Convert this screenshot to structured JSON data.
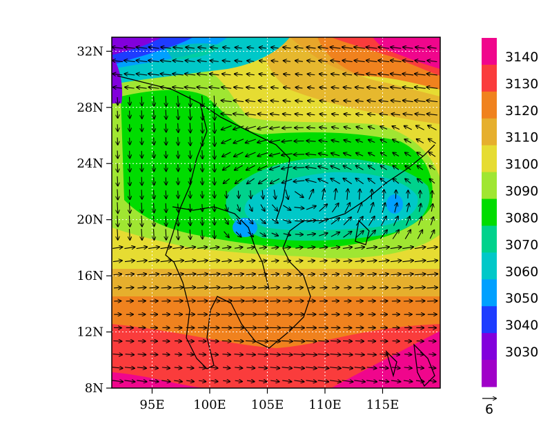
{
  "map": {
    "lat_ticks": [
      "32N",
      "28N",
      "24N",
      "20N",
      "16N",
      "12N",
      "8N"
    ],
    "lon_ticks": [
      "95E",
      "100E",
      "105E",
      "110E",
      "115E"
    ],
    "lat_range": [
      8,
      33
    ],
    "lon_range": [
      91.5,
      120
    ]
  },
  "colorbar": {
    "labels": [
      "3140",
      "3130",
      "3120",
      "3110",
      "3100",
      "3090",
      "3080",
      "3070",
      "3060",
      "3050",
      "3040",
      "3030"
    ],
    "colors": [
      "#f0068c",
      "#fa3c3c",
      "#f0821e",
      "#e6af2d",
      "#e6dc32",
      "#a0e632",
      "#00dc00",
      "#00d28c",
      "#00c8c8",
      "#00a0ff",
      "#1e3cff",
      "#8200dc",
      "#a000c8"
    ]
  },
  "vector_reference": {
    "label": "6"
  },
  "colors": {
    "frame": "#000000",
    "coastline": "#000000",
    "grid": "#ffffff"
  }
}
